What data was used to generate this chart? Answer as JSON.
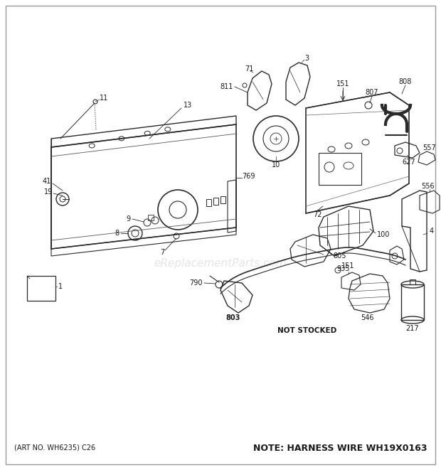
{
  "bg_color": "#ffffff",
  "line_color": "#2a2a2a",
  "text_color": "#1a1a1a",
  "bottom_left_text": "(ART NO. WH6235) C26",
  "bottom_right_text": "NOTE: HARNESS WIRE WH19X0163",
  "not_stocked_text": "NOT STOCKED",
  "watermark": "eReplacementParts.com",
  "fig_width": 6.2,
  "fig_height": 6.61,
  "dpi": 100
}
